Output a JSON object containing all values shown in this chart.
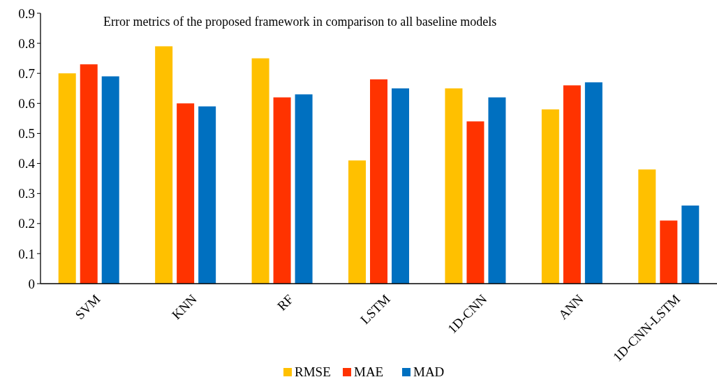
{
  "chart_data": {
    "type": "bar",
    "title": "Error metrics of the proposed framework in comparison to all baseline models",
    "categories": [
      "SVM",
      "KNN",
      "RF",
      "LSTM",
      "1D-CNN",
      "ANN",
      "1D-CNN-LSTM"
    ],
    "series": [
      {
        "name": "RMSE",
        "color": "#ffc000",
        "values": [
          0.7,
          0.79,
          0.75,
          0.41,
          0.65,
          0.58,
          0.38
        ]
      },
      {
        "name": "MAE",
        "color": "#ff3300",
        "values": [
          0.73,
          0.6,
          0.62,
          0.68,
          0.54,
          0.66,
          0.21
        ]
      },
      {
        "name": "MAD",
        "color": "#0070c0",
        "values": [
          0.69,
          0.59,
          0.63,
          0.65,
          0.62,
          0.67,
          0.26
        ]
      }
    ],
    "ylim": [
      0,
      0.9
    ],
    "yticks": [
      0,
      0.1,
      0.2,
      0.3,
      0.4,
      0.5,
      0.6,
      0.7,
      0.8,
      0.9
    ],
    "grid": false,
    "legend": "bottom"
  }
}
